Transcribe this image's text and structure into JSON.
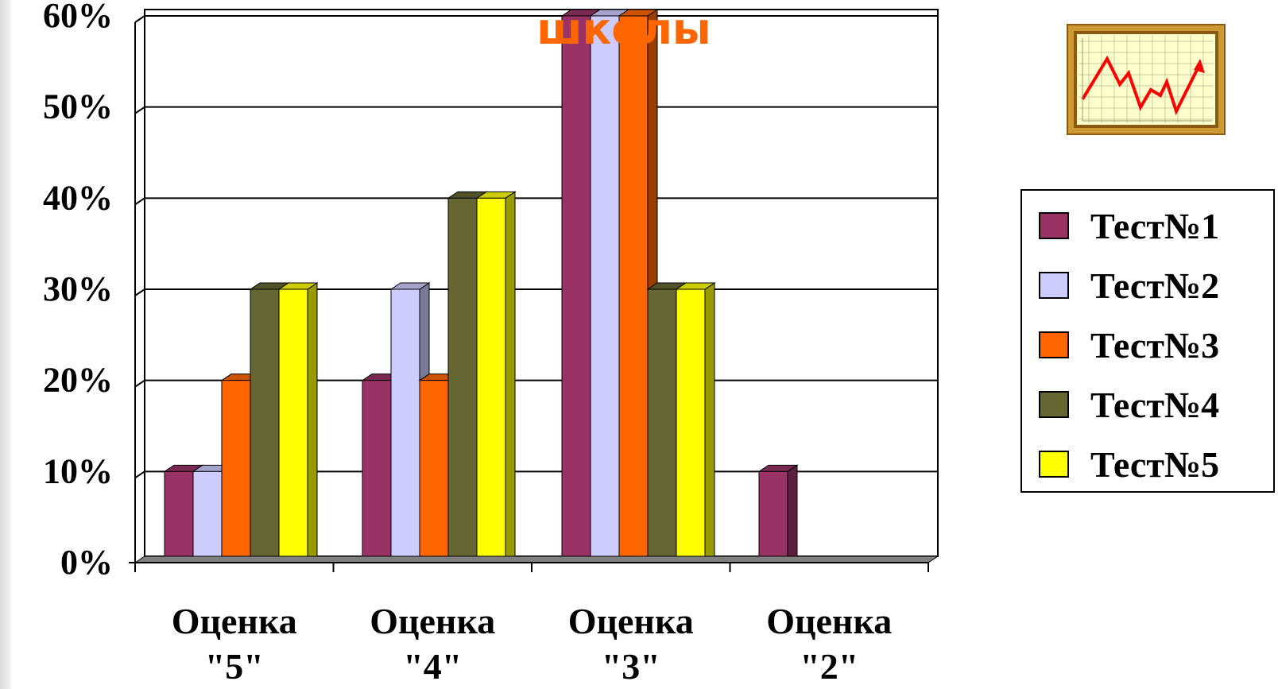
{
  "chart_data": {
    "type": "bar",
    "title": "школы",
    "categories": [
      "Оценка \"5\"",
      "Оценка \"4\"",
      "Оценка \"3\"",
      "Оценка \"2\""
    ],
    "category_lines": [
      [
        "Оценка",
        "\"5\""
      ],
      [
        "Оценка",
        "\"4\""
      ],
      [
        "Оценка",
        "\"3\""
      ],
      [
        "Оценка",
        "\"2\""
      ]
    ],
    "series": [
      {
        "name": "Тест№1",
        "values": [
          10,
          20,
          60,
          10
        ],
        "color": "#993366"
      },
      {
        "name": "Тест№2",
        "values": [
          10,
          30,
          60,
          0
        ],
        "color": "#ccccff"
      },
      {
        "name": "Тест№3",
        "values": [
          20,
          20,
          60,
          0
        ],
        "color": "#ff6600"
      },
      {
        "name": "Тест№4",
        "values": [
          30,
          40,
          30,
          0
        ],
        "color": "#666633"
      },
      {
        "name": "Тест№5",
        "values": [
          30,
          40,
          30,
          0
        ],
        "color": "#ffff00"
      }
    ],
    "yticks": [
      "0%",
      "10%",
      "20%",
      "30%",
      "40%",
      "50%",
      "60%"
    ],
    "ylim": [
      0,
      60
    ],
    "grid": true,
    "legend": "right",
    "xlabel": "",
    "ylabel": ""
  },
  "icon": {
    "name": "line-chart-icon",
    "line_color": "#ff0000",
    "frame_color": "#cc9933",
    "paper_color": "#ffffcc"
  }
}
